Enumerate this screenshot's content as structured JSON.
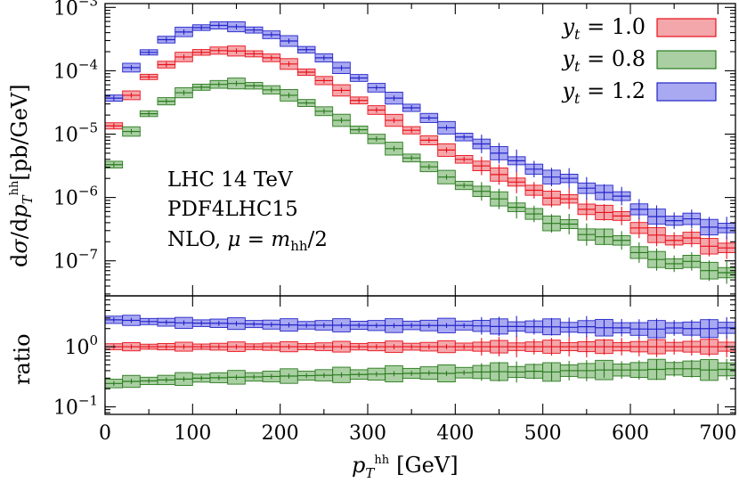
{
  "chart_data": {
    "type": "step-histogram-with-ratio",
    "xlabel": "p_T^hh [GeV]",
    "x_unit": "[GeV]",
    "xlim": [
      0,
      720
    ],
    "x_ticks": [
      "0",
      "100",
      "200",
      "300",
      "400",
      "500",
      "600",
      "700"
    ],
    "top": {
      "ylabel": "dσ/dp_T^hh [pb/GeV]",
      "y_unit": "[pb/GeV]",
      "yscale": "log",
      "ylim": [
        2.8e-08,
        0.00115
      ],
      "y_ticks": [
        "10^-7",
        "10^-6",
        "10^-5",
        "10^-4",
        "10^-3"
      ],
      "annotation": [
        "LHC 14 TeV",
        "PDF4LHC15",
        "NLO, μ = m_hh/2"
      ],
      "legend_position": "top-right"
    },
    "bottom": {
      "ylabel": "ratio",
      "yscale": "log",
      "ylim": [
        0.075,
        7.0
      ],
      "y_ticks": [
        "10^-1",
        "10^0"
      ]
    },
    "bin_edges": [
      0,
      20,
      40,
      60,
      80,
      100,
      120,
      140,
      160,
      180,
      200,
      220,
      240,
      260,
      280,
      300,
      320,
      340,
      360,
      380,
      400,
      420,
      440,
      460,
      480,
      500,
      520,
      540,
      560,
      580,
      600,
      620,
      640,
      660,
      680,
      700,
      720
    ],
    "series": [
      {
        "name": "y_t = 1.0",
        "legend_label": "y_t = 1.0",
        "color": "#e8101a",
        "fill": "#f4a7ab",
        "values": [
          1.35e-05,
          4.1e-05,
          8e-05,
          0.000125,
          0.000165,
          0.000195,
          0.000208,
          0.000205,
          0.000185,
          0.00016,
          0.000128,
          9.5e-05,
          7e-05,
          4.9e-05,
          3.4e-05,
          2.4e-05,
          1.65e-05,
          1.15e-05,
          8e-06,
          5.6e-06,
          4e-06,
          3.15e-06,
          2.3e-06,
          1.75e-06,
          1.3e-06,
          9.8e-07,
          9.5e-07,
          6.5e-07,
          5.8e-07,
          5.1e-07,
          3.3e-07,
          2.55e-07,
          2.1e-07,
          2.3e-07,
          1.7e-07,
          1.6e-07
        ],
        "band": 0.12,
        "ratio": [
          1,
          1,
          1,
          1,
          1,
          1,
          1,
          1,
          1,
          1,
          1,
          1,
          1,
          1,
          1,
          1,
          1,
          1,
          1,
          1,
          1,
          1,
          1,
          1,
          1,
          1,
          1,
          1,
          1,
          1,
          1,
          1,
          1,
          1,
          1,
          1
        ],
        "ratio_band": 0.12
      },
      {
        "name": "y_t = 0.8",
        "legend_label": "y_t = 0.8",
        "color": "#2a7a1e",
        "fill": "#a9cfa2",
        "values": [
          3.3e-06,
          1.1e-05,
          2.1e-05,
          3.3e-05,
          4.5e-05,
          5.5e-05,
          6.1e-05,
          6.3e-05,
          5.8e-05,
          5e-05,
          4.1e-05,
          3.1e-05,
          2.3e-05,
          1.65e-05,
          1.17e-05,
          8.4e-06,
          5.9e-06,
          4.2e-06,
          3.05e-06,
          2.1e-06,
          1.55e-06,
          1.25e-06,
          9.5e-07,
          7e-07,
          5.5e-07,
          3.9e-07,
          3.8e-07,
          2.6e-07,
          2.4e-07,
          2.1e-07,
          1.35e-07,
          1.05e-07,
          9e-08,
          9.8e-08,
          7e-08,
          6.5e-08
        ],
        "band": 0.13,
        "ratio": [
          0.245,
          0.265,
          0.27,
          0.28,
          0.29,
          0.3,
          0.305,
          0.31,
          0.315,
          0.32,
          0.325,
          0.33,
          0.335,
          0.34,
          0.345,
          0.35,
          0.355,
          0.36,
          0.365,
          0.36,
          0.37,
          0.38,
          0.385,
          0.38,
          0.39,
          0.38,
          0.4,
          0.4,
          0.41,
          0.41,
          0.41,
          0.42,
          0.43,
          0.43,
          0.41,
          0.42
        ],
        "ratio_band": 0.18
      },
      {
        "name": "y_t = 1.2",
        "legend_label": "y_t = 1.2",
        "color": "#2323c8",
        "fill": "#a9a9f2",
        "values": [
          3.7e-05,
          0.000112,
          0.000195,
          0.00031,
          0.00041,
          0.00048,
          0.00052,
          0.000495,
          0.00044,
          0.00037,
          0.000295,
          0.000215,
          0.00016,
          0.000111,
          7.7e-05,
          5.4e-05,
          3.7e-05,
          2.6e-05,
          1.8e-05,
          1.26e-05,
          9e-06,
          7e-06,
          5e-06,
          3.8e-06,
          2.8e-06,
          2.1e-06,
          2e-06,
          1.4e-06,
          1.2e-06,
          1.05e-06,
          6.5e-07,
          5e-07,
          4.3e-07,
          4.6e-07,
          3.4e-07,
          3.3e-07
        ],
        "band": 0.12,
        "ratio": [
          2.8,
          2.74,
          2.62,
          2.55,
          2.49,
          2.46,
          2.45,
          2.42,
          2.38,
          2.33,
          2.3,
          2.27,
          2.27,
          2.27,
          2.27,
          2.25,
          2.24,
          2.26,
          2.25,
          2.25,
          2.25,
          2.22,
          2.17,
          2.17,
          2.15,
          2.14,
          2.1,
          2.15,
          2.07,
          2.06,
          1.97,
          1.96,
          2.05,
          2.0,
          2.0,
          2.06
        ],
        "ratio_band": 0.15
      }
    ]
  }
}
